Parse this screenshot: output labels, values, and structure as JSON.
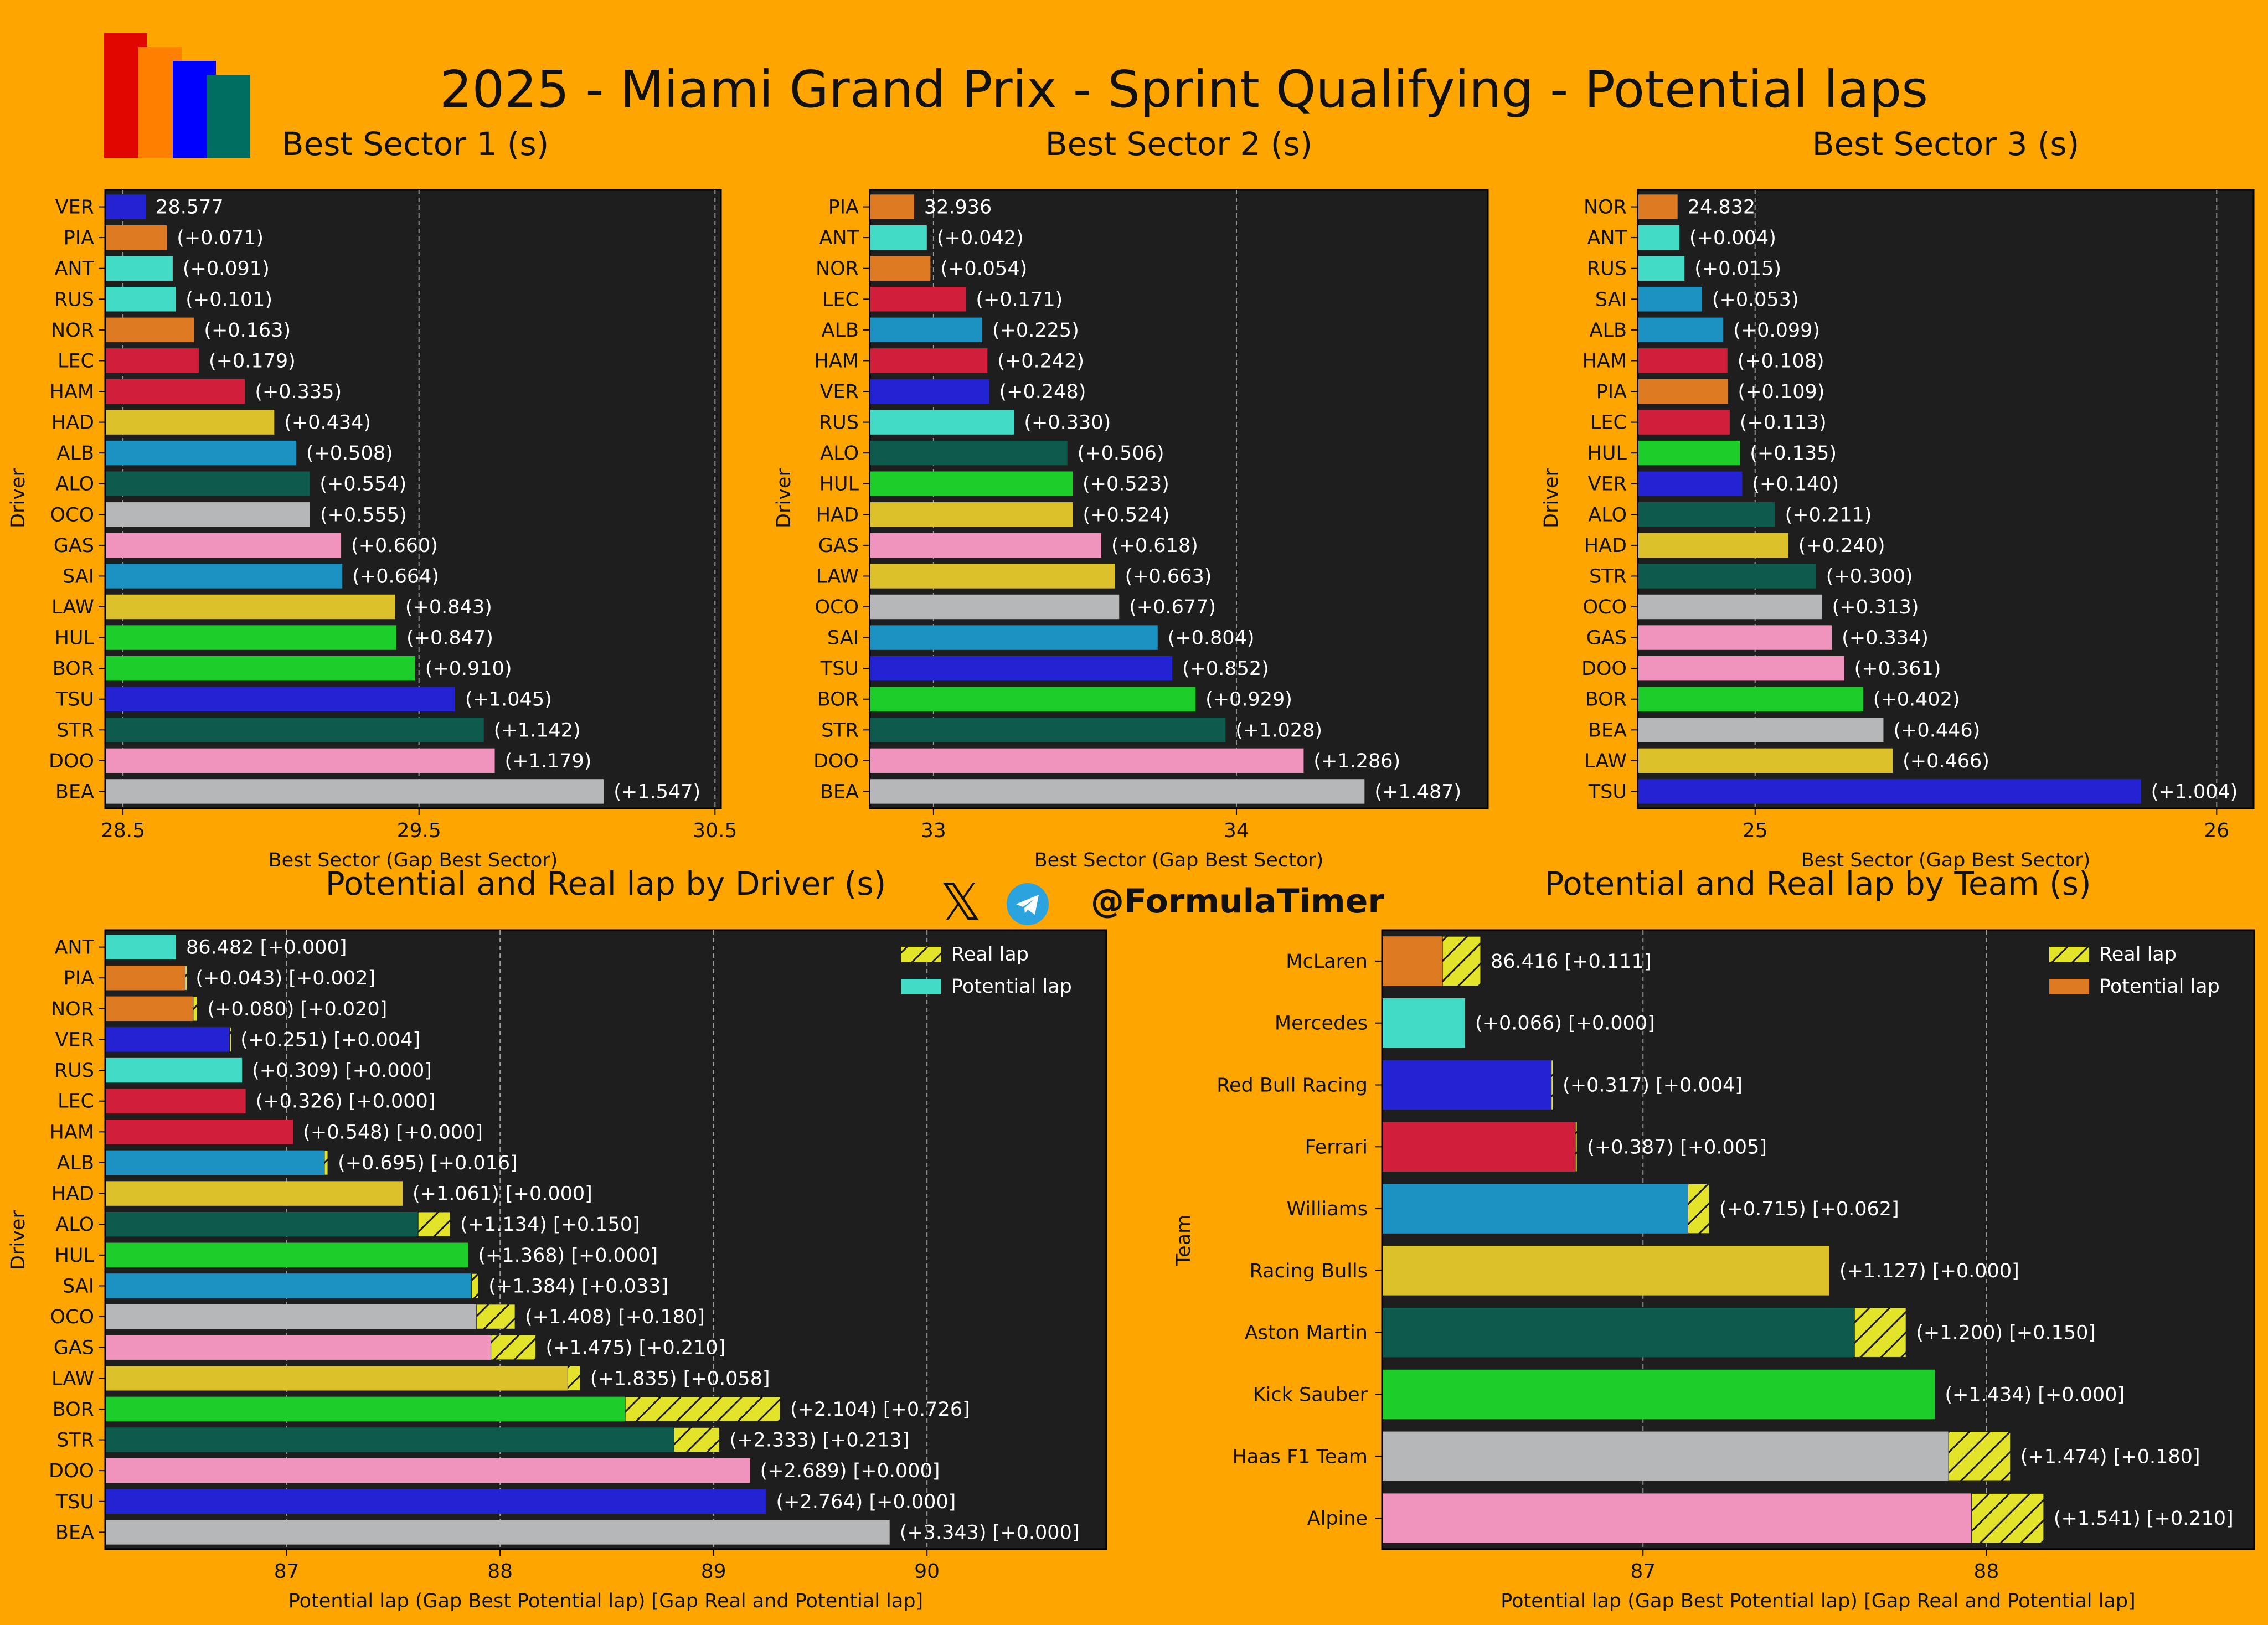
{
  "title": "2025 - Miami Grand Prix - Sprint Qualifying - Potential laps",
  "social": {
    "x_icon": "x-logo-icon",
    "telegram_icon": "telegram-icon",
    "handle": "@FormulaTimer"
  },
  "logo": {
    "bar_colors": [
      "#E10600",
      "#FF8000",
      "#0000FF",
      "#006F62"
    ]
  },
  "colors": {
    "background": "#FFA500",
    "panel": "#1E1E1E",
    "real_lap_hatch": "#E3E32A"
  },
  "chart_data": [
    {
      "id": "sector1",
      "type": "bar",
      "orientation": "horizontal",
      "title": "Best Sector 1 (s)",
      "xlabel": "Best Sector (Gap Best Sector)",
      "ylabel": "Driver",
      "xlim": [
        28.44,
        30.52
      ],
      "xticks": [
        28.5,
        29.5,
        30.5
      ],
      "grid": true,
      "categories": [
        "VER",
        "PIA",
        "ANT",
        "RUS",
        "NOR",
        "LEC",
        "HAM",
        "HAD",
        "ALB",
        "ALO",
        "OCO",
        "GAS",
        "SAI",
        "LAW",
        "HUL",
        "BOR",
        "TSU",
        "STR",
        "DOO",
        "BEA"
      ],
      "values": [
        28.577,
        28.648,
        28.668,
        28.678,
        28.74,
        28.756,
        28.912,
        29.011,
        29.085,
        29.131,
        29.132,
        29.237,
        29.241,
        29.42,
        29.424,
        29.487,
        29.622,
        29.719,
        29.756,
        30.124
      ],
      "labels": [
        "28.577",
        "(+0.071)",
        "(+0.091)",
        "(+0.101)",
        "(+0.163)",
        "(+0.179)",
        "(+0.335)",
        "(+0.434)",
        "(+0.508)",
        "(+0.554)",
        "(+0.555)",
        "(+0.660)",
        "(+0.664)",
        "(+0.843)",
        "(+0.847)",
        "(+0.910)",
        "(+1.045)",
        "(+1.142)",
        "(+1.179)",
        "(+1.547)"
      ],
      "colors": [
        "#2323D4",
        "#DE7B22",
        "#42DBC6",
        "#42DBC6",
        "#DE7B22",
        "#D11E3A",
        "#D11E3A",
        "#DDC12A",
        "#1C92C2",
        "#0E5A4C",
        "#B6B7B9",
        "#F093BD",
        "#1C92C2",
        "#DDC12A",
        "#1DCE2A",
        "#1DCE2A",
        "#2323D4",
        "#0E5A4C",
        "#F093BD",
        "#B6B7B9"
      ]
    },
    {
      "id": "sector2",
      "type": "bar",
      "orientation": "horizontal",
      "title": "Best Sector 2 (s)",
      "xlabel": "Best Sector (Gap Best Sector)",
      "ylabel": "Driver",
      "xlim": [
        32.79,
        34.83
      ],
      "xticks": [
        33,
        34
      ],
      "grid": true,
      "categories": [
        "PIA",
        "ANT",
        "NOR",
        "LEC",
        "ALB",
        "HAM",
        "VER",
        "RUS",
        "ALO",
        "HUL",
        "HAD",
        "GAS",
        "LAW",
        "OCO",
        "SAI",
        "TSU",
        "BOR",
        "STR",
        "DOO",
        "BEA"
      ],
      "values": [
        32.936,
        32.978,
        32.99,
        33.107,
        33.161,
        33.178,
        33.184,
        33.266,
        33.442,
        33.459,
        33.46,
        33.554,
        33.599,
        33.613,
        33.74,
        33.788,
        33.865,
        33.964,
        34.222,
        34.423
      ],
      "labels": [
        "32.936",
        "(+0.042)",
        "(+0.054)",
        "(+0.171)",
        "(+0.225)",
        "(+0.242)",
        "(+0.248)",
        "(+0.330)",
        "(+0.506)",
        "(+0.523)",
        "(+0.524)",
        "(+0.618)",
        "(+0.663)",
        "(+0.677)",
        "(+0.804)",
        "(+0.852)",
        "(+0.929)",
        "(+1.028)",
        "(+1.286)",
        "(+1.487)"
      ],
      "colors": [
        "#DE7B22",
        "#42DBC6",
        "#DE7B22",
        "#D11E3A",
        "#1C92C2",
        "#D11E3A",
        "#2323D4",
        "#42DBC6",
        "#0E5A4C",
        "#1DCE2A",
        "#DDC12A",
        "#F093BD",
        "#DDC12A",
        "#B6B7B9",
        "#1C92C2",
        "#2323D4",
        "#1DCE2A",
        "#0E5A4C",
        "#F093BD",
        "#B6B7B9"
      ]
    },
    {
      "id": "sector3",
      "type": "bar",
      "orientation": "horizontal",
      "title": "Best Sector 3 (s)",
      "xlabel": "Best Sector (Gap Best Sector)",
      "ylabel": "Driver",
      "xlim": [
        24.746,
        26.08
      ],
      "xticks": [
        25,
        26
      ],
      "grid": true,
      "categories": [
        "NOR",
        "ANT",
        "RUS",
        "SAI",
        "ALB",
        "HAM",
        "PIA",
        "LEC",
        "HUL",
        "VER",
        "ALO",
        "HAD",
        "STR",
        "OCO",
        "GAS",
        "DOO",
        "BOR",
        "BEA",
        "LAW",
        "TSU"
      ],
      "values": [
        24.832,
        24.836,
        24.847,
        24.885,
        24.931,
        24.94,
        24.941,
        24.945,
        24.967,
        24.972,
        25.043,
        25.072,
        25.132,
        25.145,
        25.166,
        25.193,
        25.234,
        25.278,
        25.298,
        25.836
      ],
      "labels": [
        "24.832",
        "(+0.004)",
        "(+0.015)",
        "(+0.053)",
        "(+0.099)",
        "(+0.108)",
        "(+0.109)",
        "(+0.113)",
        "(+0.135)",
        "(+0.140)",
        "(+0.211)",
        "(+0.240)",
        "(+0.300)",
        "(+0.313)",
        "(+0.334)",
        "(+0.361)",
        "(+0.402)",
        "(+0.446)",
        "(+0.466)",
        "(+1.004)"
      ],
      "colors": [
        "#DE7B22",
        "#42DBC6",
        "#42DBC6",
        "#1C92C2",
        "#1C92C2",
        "#D11E3A",
        "#DE7B22",
        "#D11E3A",
        "#1DCE2A",
        "#2323D4",
        "#0E5A4C",
        "#DDC12A",
        "#0E5A4C",
        "#B6B7B9",
        "#F093BD",
        "#F093BD",
        "#1DCE2A",
        "#B6B7B9",
        "#DDC12A",
        "#2323D4"
      ]
    },
    {
      "id": "driver-laps",
      "type": "bar",
      "orientation": "horizontal",
      "title": "Potential and Real lap by Driver (s)",
      "xlabel": "Potential lap (Gap Best Potential lap) [Gap Real and Potential lap]",
      "ylabel": "Driver",
      "xlim": [
        86.15,
        90.84
      ],
      "xticks": [
        87,
        88,
        89,
        90
      ],
      "grid": true,
      "legend": {
        "position": "top-right",
        "entries": [
          "Real lap",
          "Potential lap"
        ],
        "swatch_color": "#42DBC6"
      },
      "categories": [
        "ANT",
        "PIA",
        "NOR",
        "VER",
        "RUS",
        "LEC",
        "HAM",
        "ALB",
        "HAD",
        "ALO",
        "HUL",
        "SAI",
        "OCO",
        "GAS",
        "LAW",
        "BOR",
        "STR",
        "DOO",
        "TSU",
        "BEA"
      ],
      "potential": [
        86.482,
        86.525,
        86.562,
        86.733,
        86.791,
        86.808,
        87.03,
        87.177,
        87.543,
        87.616,
        87.85,
        87.866,
        87.89,
        87.957,
        88.317,
        88.586,
        88.815,
        89.171,
        89.246,
        89.825
      ],
      "real_gap": [
        0.0,
        0.002,
        0.02,
        0.004,
        0.0,
        0.0,
        0.0,
        0.016,
        0.0,
        0.15,
        0.0,
        0.033,
        0.18,
        0.21,
        0.058,
        0.726,
        0.213,
        0.0,
        0.0,
        0.0
      ],
      "labels": [
        "86.482 [+0.000]",
        "(+0.043) [+0.002]",
        "(+0.080) [+0.020]",
        "(+0.251) [+0.004]",
        "(+0.309) [+0.000]",
        "(+0.326) [+0.000]",
        "(+0.548) [+0.000]",
        "(+0.695) [+0.016]",
        "(+1.061) [+0.000]",
        "(+1.134) [+0.150]",
        "(+1.368) [+0.000]",
        "(+1.384) [+0.033]",
        "(+1.408) [+0.180]",
        "(+1.475) [+0.210]",
        "(+1.835) [+0.058]",
        "(+2.104) [+0.726]",
        "(+2.333) [+0.213]",
        "(+2.689) [+0.000]",
        "(+2.764) [+0.000]",
        "(+3.343) [+0.000]"
      ],
      "colors": [
        "#42DBC6",
        "#DE7B22",
        "#DE7B22",
        "#2323D4",
        "#42DBC6",
        "#D11E3A",
        "#D11E3A",
        "#1C92C2",
        "#DDC12A",
        "#0E5A4C",
        "#1DCE2A",
        "#1C92C2",
        "#B6B7B9",
        "#F093BD",
        "#DDC12A",
        "#1DCE2A",
        "#0E5A4C",
        "#F093BD",
        "#2323D4",
        "#B6B7B9"
      ]
    },
    {
      "id": "team-laps",
      "type": "bar",
      "orientation": "horizontal",
      "title": "Potential and Real lap by Team (s)",
      "xlabel": "Potential lap (Gap Best Potential lap) [Gap Real and Potential lap]",
      "ylabel": "Team",
      "xlim": [
        86.24,
        88.78
      ],
      "xticks": [
        87,
        88
      ],
      "grid": true,
      "legend": {
        "position": "top-right",
        "entries": [
          "Real lap",
          "Potential lap"
        ],
        "swatch_color": "#DE7B22"
      },
      "categories": [
        "McLaren",
        "Mercedes",
        "Red Bull Racing",
        "Ferrari",
        "Williams",
        "Racing Bulls",
        "Aston Martin",
        "Kick Sauber",
        "Haas F1 Team",
        "Alpine"
      ],
      "potential": [
        86.416,
        86.482,
        86.733,
        86.803,
        87.131,
        87.543,
        87.616,
        87.85,
        87.89,
        87.957
      ],
      "real_gap": [
        0.111,
        0.0,
        0.004,
        0.005,
        0.062,
        0.0,
        0.15,
        0.0,
        0.18,
        0.21
      ],
      "labels": [
        "86.416 [+0.111]",
        "(+0.066) [+0.000]",
        "(+0.317) [+0.004]",
        "(+0.387) [+0.005]",
        "(+0.715) [+0.062]",
        "(+1.127) [+0.000]",
        "(+1.200) [+0.150]",
        "(+1.434) [+0.000]",
        "(+1.474) [+0.180]",
        "(+1.541) [+0.210]"
      ],
      "colors": [
        "#DE7B22",
        "#42DBC6",
        "#2323D4",
        "#D11E3A",
        "#1C92C2",
        "#DDC12A",
        "#0E5A4C",
        "#1DCE2A",
        "#B6B7B9",
        "#F093BD"
      ]
    }
  ]
}
